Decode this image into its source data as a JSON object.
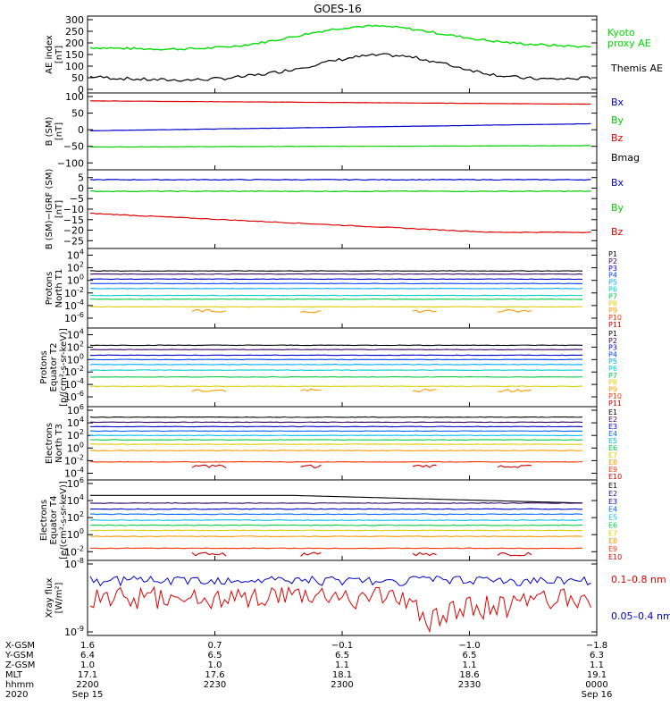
{
  "title": "GOES-16",
  "panels": [
    {
      "id": "ae",
      "ylabel": [
        "AE index",
        "[nT]"
      ],
      "ticks": [
        "300",
        "250",
        "200",
        "150",
        "100",
        "50",
        "0"
      ],
      "tick_values": [
        300,
        250,
        200,
        150,
        100,
        50,
        0
      ],
      "ylim": [
        0,
        300
      ],
      "series": [
        {
          "name": "Kyoto proxy AE",
          "legend": [
            "Kyoto",
            "proxy AE"
          ],
          "color": "#00dd00"
        },
        {
          "name": "Themis AE",
          "legend": [
            "Themis AE"
          ],
          "color": "#000000"
        }
      ]
    },
    {
      "id": "b_sm",
      "ylabel": [
        "B (SM)",
        "[nT]"
      ],
      "ticks": [
        "100",
        "50",
        "0",
        "−50",
        "−100"
      ],
      "tick_values": [
        100,
        50,
        0,
        -50,
        -100
      ],
      "ylim": [
        -110,
        100
      ],
      "series": [
        {
          "name": "Bx",
          "color": "#0000cc",
          "approx_values": [
            -3,
            18
          ]
        },
        {
          "name": "By",
          "color": "#00cc00",
          "approx_values": [
            -52,
            -48
          ]
        },
        {
          "name": "Bz",
          "color": "#dd0000",
          "approx_values": [
            87,
            77
          ]
        },
        {
          "name": "Bmag",
          "color": "#000000"
        }
      ]
    },
    {
      "id": "b_igrf",
      "ylabel": [
        "B (SM)−IGRF (SM)",
        "[nT]"
      ],
      "ticks": [
        "5",
        "0",
        "−5",
        "−10",
        "−15",
        "−20",
        "−25"
      ],
      "tick_values": [
        5,
        0,
        -5,
        -10,
        -15,
        -20,
        -25
      ],
      "ylim": [
        -27,
        7
      ],
      "series": [
        {
          "name": "Bx",
          "color": "#0000cc",
          "approx_values": [
            4,
            4
          ]
        },
        {
          "name": "By",
          "color": "#00cc00",
          "approx_values": [
            -1.5,
            -1.5
          ]
        },
        {
          "name": "Bz",
          "color": "#dd0000",
          "approx_values": [
            -12,
            -21
          ]
        }
      ]
    },
    {
      "id": "protons_t1",
      "ylabel": [
        "Protons",
        "North T1"
      ],
      "ticks": [
        "10",
        "10",
        "10",
        "10",
        "10",
        "10"
      ],
      "tick_exps": [
        "4",
        "2",
        "0",
        "-2",
        "-4",
        "-6"
      ],
      "tick_values": [
        4,
        2,
        0,
        -2,
        -4,
        -6
      ],
      "ylim": [
        -7,
        4.5
      ],
      "channels": [
        "P1",
        "P2",
        "P3",
        "P4",
        "P5",
        "P6",
        "P7",
        "P8",
        "P9",
        "P10",
        "P11"
      ],
      "channel_colors": [
        "#000000",
        "#330066",
        "#0000cc",
        "#0044ff",
        "#00aaff",
        "#00cccc",
        "#00cc44",
        "#ddcc00",
        "#ff9900",
        "#ff3300",
        "#cc0000"
      ],
      "approx_log_levels": [
        1.5,
        1.0,
        0.2,
        -0.5,
        -1.3,
        -2.4,
        -3.0,
        -4.2
      ]
    },
    {
      "id": "protons_t2",
      "ylabel": [
        "Protons",
        "Equator T2",
        "[p/(cm²-s-sr-keV)]"
      ],
      "ticks": [
        "10",
        "10",
        "10",
        "10",
        "10",
        "10"
      ],
      "tick_exps": [
        "4",
        "2",
        "0",
        "-2",
        "-4",
        "-6"
      ],
      "tick_values": [
        4,
        2,
        0,
        -2,
        -4,
        -6
      ],
      "ylim": [
        -7,
        4.5
      ],
      "channels": [
        "P1",
        "P2",
        "P3",
        "P4",
        "P5",
        "P6",
        "P7",
        "P8",
        "P9",
        "P10",
        "P11"
      ],
      "channel_colors": [
        "#000000",
        "#330066",
        "#0000cc",
        "#0044ff",
        "#00aaff",
        "#00cccc",
        "#00cc44",
        "#ddcc00",
        "#ff9900",
        "#ff3300",
        "#cc0000"
      ],
      "approx_log_levels": [
        2.3,
        1.6,
        0.7,
        0.0,
        -0.8,
        -1.7,
        -2.8,
        -4.3
      ]
    },
    {
      "id": "electrons_t3",
      "ylabel": [
        "Electrons",
        "North T3"
      ],
      "ticks": [
        "10",
        "10",
        "10",
        "10",
        "10",
        "10"
      ],
      "tick_exps": [
        "6",
        "4",
        "2",
        "0",
        "-2",
        "-4"
      ],
      "tick_values": [
        6,
        4,
        2,
        0,
        -2,
        -4
      ],
      "ylim": [
        -4.5,
        6
      ],
      "channels": [
        "E1",
        "E2",
        "E3",
        "E4",
        "E5",
        "E6",
        "E7",
        "E8",
        "E9",
        "E10"
      ],
      "channel_colors": [
        "#000000",
        "#330066",
        "#0000cc",
        "#0066ff",
        "#00bbee",
        "#00cc44",
        "#ddcc00",
        "#ff9900",
        "#ff3300",
        "#cc0000"
      ],
      "approx_log_levels": [
        4.9,
        4.1,
        3.4,
        2.7,
        2.0,
        1.3,
        0.6,
        -0.4,
        -2.2
      ]
    },
    {
      "id": "electrons_t4",
      "ylabel": [
        "Electrons",
        "Equator T4",
        "[e/(cm²-s-sr-keV)]"
      ],
      "ticks": [
        "10",
        "10",
        "10",
        "10",
        "10"
      ],
      "tick_exps": [
        "6",
        "4",
        "2",
        "0",
        "-2"
      ],
      "tick_values": [
        6,
        4,
        2,
        0,
        -2
      ],
      "ylim": [
        -2.6,
        6
      ],
      "channels": [
        "E1",
        "E2",
        "E3",
        "E4",
        "E5",
        "E6",
        "E7",
        "E8",
        "E9",
        "E10"
      ],
      "channel_colors": [
        "#000000",
        "#330066",
        "#0000cc",
        "#0066ff",
        "#00bbee",
        "#00cc44",
        "#ddcc00",
        "#ff9900",
        "#ff3300",
        "#cc0000"
      ],
      "approx_log_levels": [
        4.6,
        3.7,
        3.0,
        2.4,
        1.7,
        1.1,
        0.5,
        -0.2,
        -1.6
      ]
    },
    {
      "id": "xray",
      "ylabel": [
        "Xray flux",
        "[W/m²]"
      ],
      "ticks": [
        "10",
        "10"
      ],
      "tick_exps": [
        "-8",
        "-9"
      ],
      "tick_values": [
        -8,
        -9
      ],
      "ylim": [
        -9,
        -8
      ],
      "series": [
        {
          "name": "0.1–0.8 nm",
          "color": "#dd0000"
        },
        {
          "name": "0.05–0.4 nm",
          "color": "#0000cc"
        }
      ]
    }
  ],
  "x_axis": {
    "row_labels": [
      "X-GSM",
      "Y-GSM",
      "Z-GSM",
      "MLT",
      "hhmm",
      "2020"
    ],
    "columns": [
      {
        "x-gsm": "1.6",
        "y-gsm": "6.4",
        "z-gsm": "1.0",
        "mlt": "17.1",
        "hhmm": "2200",
        "date": "Sep 15"
      },
      {
        "x-gsm": "0.7",
        "y-gsm": "6.5",
        "z-gsm": "1.0",
        "mlt": "17.6",
        "hhmm": "2230",
        "date": ""
      },
      {
        "x-gsm": "−0.1",
        "y-gsm": "6.5",
        "z-gsm": "1.1",
        "mlt": "18.1",
        "hhmm": "2300",
        "date": ""
      },
      {
        "x-gsm": "−1.0",
        "y-gsm": "6.5",
        "z-gsm": "1.1",
        "mlt": "18.6",
        "hhmm": "2330",
        "date": ""
      },
      {
        "x-gsm": "−1.8",
        "y-gsm": "6.3",
        "z-gsm": "1.1",
        "mlt": "19.1",
        "hhmm": "0000",
        "date": "Sep 16"
      }
    ]
  },
  "chart_data": [
    {
      "type": "line",
      "title": "GOES-16",
      "ylabel": "AE index [nT]",
      "ylim": [
        0,
        300
      ],
      "x": [
        "2200",
        "2230",
        "2300",
        "2330",
        "0000"
      ],
      "series": [
        {
          "name": "Kyoto proxy AE",
          "values": [
            180,
            165,
            240,
            265,
            185
          ]
        },
        {
          "name": "Themis AE",
          "values": [
            55,
            40,
            105,
            135,
            85
          ]
        }
      ]
    },
    {
      "type": "line",
      "ylabel": "B (SM) [nT]",
      "ylim": [
        -110,
        100
      ],
      "x": [
        "2200",
        "2230",
        "2300",
        "2330",
        "0000"
      ],
      "series": [
        {
          "name": "Bx",
          "values": [
            -3,
            0,
            5,
            10,
            18
          ]
        },
        {
          "name": "By",
          "values": [
            -52,
            -52,
            -51,
            -49,
            -48
          ]
        },
        {
          "name": "Bz",
          "values": [
            87,
            85,
            82,
            80,
            77
          ]
        }
      ]
    },
    {
      "type": "line",
      "ylabel": "B (SM)-IGRF (SM) [nT]",
      "ylim": [
        -27,
        7
      ],
      "x": [
        "2200",
        "2230",
        "2300",
        "2330",
        "0000"
      ],
      "series": [
        {
          "name": "Bx",
          "values": [
            4,
            4,
            4.5,
            4,
            4
          ]
        },
        {
          "name": "By",
          "values": [
            -1.5,
            -2,
            -1.5,
            -1,
            -1.5
          ]
        },
        {
          "name": "Bz",
          "values": [
            -12,
            -14,
            -17,
            -20,
            -21
          ]
        }
      ]
    },
    {
      "type": "line",
      "ylabel": "Protons North T1",
      "log_scale": true,
      "ylim_exponent": [
        -7,
        4.5
      ],
      "x": [
        "2200",
        "2230",
        "2300",
        "2330",
        "0000"
      ],
      "series": [
        {
          "name": "P1",
          "values": [
            30,
            30,
            30,
            30,
            30
          ]
        },
        {
          "name": "P2",
          "values": [
            10,
            10,
            10,
            10,
            10
          ]
        },
        {
          "name": "P3",
          "values": [
            1.5,
            1.5,
            1.5,
            1.5,
            1.5
          ]
        },
        {
          "name": "P4",
          "values": [
            0.3,
            0.3,
            0.3,
            0.3,
            0.3
          ]
        },
        {
          "name": "P5",
          "values": [
            0.05,
            0.05,
            0.05,
            0.05,
            0.05
          ]
        },
        {
          "name": "P6",
          "values": [
            0.004,
            0.004,
            0.004,
            0.004,
            0.004
          ]
        },
        {
          "name": "P7",
          "values": [
            0.001,
            0.001,
            0.001,
            0.001,
            0.001
          ]
        }
      ]
    },
    {
      "type": "line",
      "ylabel": "Protons Equator T2 [p/(cm2-s-sr-keV)]",
      "log_scale": true,
      "ylim_exponent": [
        -7,
        4.5
      ],
      "x": [
        "2200",
        "2230",
        "2300",
        "2330",
        "0000"
      ],
      "series": [
        {
          "name": "P1",
          "values": [
            200,
            200,
            200,
            200,
            200
          ]
        },
        {
          "name": "P2",
          "values": [
            40,
            40,
            40,
            40,
            40
          ]
        },
        {
          "name": "P3",
          "values": [
            5,
            5,
            5,
            5,
            5
          ]
        },
        {
          "name": "P4",
          "values": [
            1,
            1,
            1,
            1,
            1
          ]
        },
        {
          "name": "P5",
          "values": [
            0.16,
            0.16,
            0.16,
            0.16,
            0.16
          ]
        },
        {
          "name": "P6",
          "values": [
            0.02,
            0.02,
            0.02,
            0.02,
            0.02
          ]
        },
        {
          "name": "P7",
          "values": [
            0.0016,
            0.0016,
            0.0016,
            0.0016,
            0.0016
          ]
        }
      ]
    },
    {
      "type": "line",
      "ylabel": "Electrons North T3",
      "log_scale": true,
      "ylim_exponent": [
        -4.5,
        6
      ],
      "x": [
        "2200",
        "2230",
        "2300",
        "2330",
        "0000"
      ],
      "series": [
        {
          "name": "E1",
          "values": [
            80000,
            80000,
            80000,
            80000,
            80000
          ]
        },
        {
          "name": "E2",
          "values": [
            12000,
            12000,
            12000,
            12000,
            12000
          ]
        },
        {
          "name": "E3",
          "values": [
            2500,
            2500,
            2500,
            2500,
            2500
          ]
        },
        {
          "name": "E4",
          "values": [
            500,
            500,
            500,
            500,
            500
          ]
        },
        {
          "name": "E5",
          "values": [
            100,
            100,
            100,
            100,
            100
          ]
        },
        {
          "name": "E6",
          "values": [
            20,
            20,
            20,
            20,
            20
          ]
        },
        {
          "name": "E7",
          "values": [
            4,
            4,
            4,
            4,
            4
          ]
        },
        {
          "name": "E8",
          "values": [
            0.4,
            0.4,
            0.4,
            0.4,
            0.4
          ]
        },
        {
          "name": "E9",
          "values": [
            0.006,
            0.006,
            0.006,
            0.006,
            0.006
          ]
        }
      ]
    },
    {
      "type": "line",
      "ylabel": "Electrons Equator T4 [e/(cm2-s-sr-keV)]",
      "log_scale": true,
      "ylim_exponent": [
        -2.6,
        6
      ],
      "x": [
        "2200",
        "2230",
        "2300",
        "2330",
        "0000"
      ],
      "series": [
        {
          "name": "E1",
          "values": [
            40000,
            40000,
            30000,
            20000,
            15000
          ]
        },
        {
          "name": "E2",
          "values": [
            5000,
            5000,
            5000,
            5000,
            5000
          ]
        },
        {
          "name": "E3",
          "values": [
            1000,
            1000,
            1000,
            1000,
            1000
          ]
        },
        {
          "name": "E4",
          "values": [
            250,
            250,
            250,
            250,
            250
          ]
        },
        {
          "name": "E5",
          "values": [
            50,
            50,
            50,
            50,
            50
          ]
        },
        {
          "name": "E6",
          "values": [
            12,
            12,
            12,
            12,
            12
          ]
        },
        {
          "name": "E7",
          "values": [
            3,
            3,
            3,
            3,
            3
          ]
        },
        {
          "name": "E8",
          "values": [
            0.6,
            0.6,
            0.6,
            0.6,
            0.6
          ]
        },
        {
          "name": "E9",
          "values": [
            0.025,
            0.025,
            0.025,
            0.025,
            0.025
          ]
        }
      ]
    },
    {
      "type": "line",
      "ylabel": "Xray flux [W/m2]",
      "log_scale": true,
      "ylim": [
        1e-09,
        1e-08
      ],
      "x": [
        "2200",
        "2230",
        "2300",
        "2330",
        "0000"
      ],
      "series": [
        {
          "name": "0.1-0.8 nm",
          "values": [
            3e-09,
            2.8e-09,
            3e-09,
            2.5e-09,
            2.8e-09
          ]
        },
        {
          "name": "0.05-0.4 nm",
          "values": [
            6e-09,
            5.8e-09,
            6e-09,
            5.7e-09,
            6e-09
          ]
        }
      ]
    }
  ]
}
